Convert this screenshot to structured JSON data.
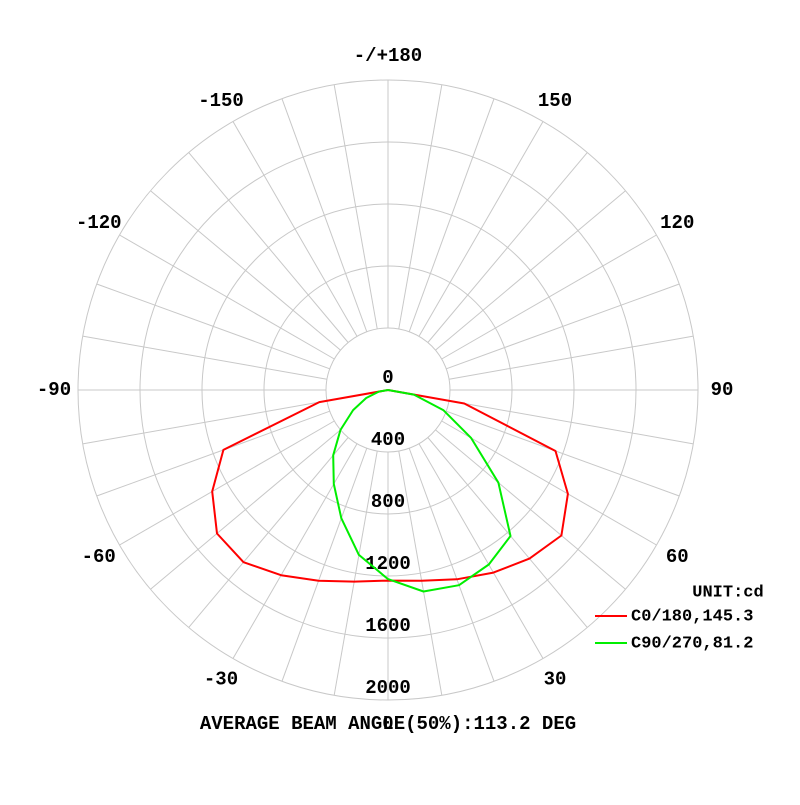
{
  "chart_data": {
    "type": "polar",
    "unit_label": "UNIT:cd",
    "footer": "AVERAGE BEAM ANGLE(50%):113.2 DEG",
    "angles": [
      -90,
      -80,
      -70,
      -60,
      -50,
      -40,
      -30,
      -20,
      -10,
      0,
      10,
      20,
      30,
      40,
      50,
      60,
      70,
      80,
      90
    ],
    "series": [
      {
        "name": "C0/180,145.3",
        "color": "#ff0000",
        "values": [
          0,
          450,
          1130,
          1310,
          1440,
          1450,
          1380,
          1310,
          1255,
          1230,
          1250,
          1300,
          1360,
          1420,
          1460,
          1340,
          1150,
          500,
          0
        ]
      },
      {
        "name": "C90/270,81.2",
        "color": "#00ee00",
        "values": [
          0,
          60,
          150,
          260,
          400,
          550,
          700,
          880,
          1080,
          1220,
          1320,
          1340,
          1300,
          1230,
          930,
          620,
          380,
          170,
          0
        ]
      }
    ],
    "rlim": [
      0,
      2000
    ],
    "rticks": [
      0,
      400,
      800,
      1200,
      1600,
      2000
    ],
    "angle_ticks": [
      0,
      30,
      60,
      90,
      120,
      150,
      {
        "value": 180,
        "label": "-/+180"
      },
      -150,
      -120,
      -90,
      -60,
      -30
    ]
  }
}
